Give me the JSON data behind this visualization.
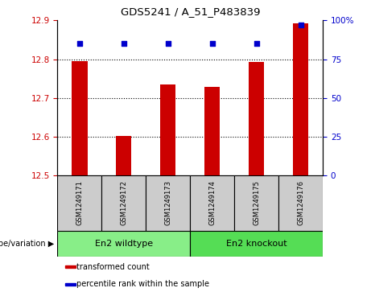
{
  "title": "GDS5241 / A_51_P483839",
  "samples": [
    "GSM1249171",
    "GSM1249172",
    "GSM1249173",
    "GSM1249174",
    "GSM1249175",
    "GSM1249176"
  ],
  "transformed_counts": [
    12.795,
    12.602,
    12.735,
    12.728,
    12.793,
    12.893
  ],
  "percentile_ranks": [
    85,
    85,
    85,
    85,
    85,
    97
  ],
  "ymin": 12.5,
  "ymax": 12.9,
  "y2min": 0,
  "y2max": 100,
  "yticks": [
    12.5,
    12.6,
    12.7,
    12.8,
    12.9
  ],
  "y2ticks": [
    0,
    25,
    50,
    75,
    100
  ],
  "bar_color": "#cc0000",
  "dot_color": "#0000cc",
  "group_label_prefix": "genotype/variation",
  "group_wildtype_label": "En2 wildtype",
  "group_knockout_label": "En2 knockout",
  "group_wildtype_color": "#88ee88",
  "group_knockout_color": "#55dd55",
  "legend_items": [
    {
      "color": "#cc0000",
      "label": "transformed count"
    },
    {
      "color": "#0000cc",
      "label": "percentile rank within the sample"
    }
  ],
  "base_value": 12.5,
  "tick_color_left": "#cc0000",
  "tick_color_right": "#0000cc",
  "y2tick_labels": [
    "0",
    "25",
    "50",
    "75",
    "100%"
  ],
  "sample_box_color": "#cccccc",
  "bar_width": 0.35
}
